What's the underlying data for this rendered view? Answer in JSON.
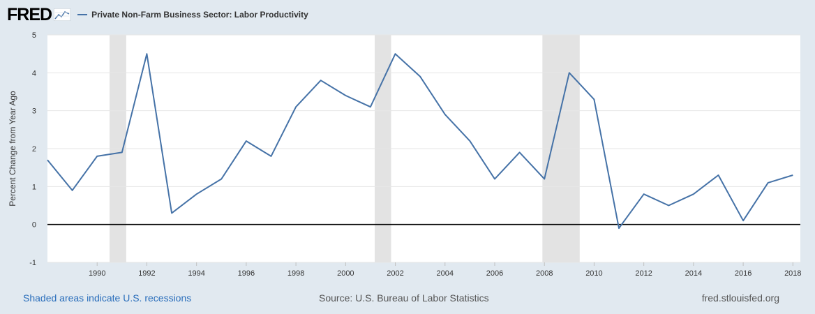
{
  "header": {
    "logo_text": "FRED",
    "legend_label": "Private Non-Farm Business Sector: Labor Productivity"
  },
  "footer": {
    "recession_note": "Shaded areas indicate U.S. recessions",
    "source": "Source: U.S. Bureau of Labor Statistics",
    "url": "fred.stlouisfed.org"
  },
  "colors": {
    "series": "#4572a7",
    "recession": "#e3e3e3",
    "background": "#e1e9f0"
  },
  "chart_data": {
    "type": "line",
    "title": "",
    "xlabel": "",
    "ylabel": "Percent Change from Year Ago",
    "xlim": [
      1988,
      2018.3
    ],
    "ylim": [
      -1,
      5
    ],
    "yticks": [
      -1,
      0,
      1,
      2,
      3,
      4,
      5
    ],
    "xticks": [
      1990,
      1992,
      1994,
      1996,
      1998,
      2000,
      2002,
      2004,
      2006,
      2008,
      2010,
      2012,
      2014,
      2016,
      2018
    ],
    "zero_line": true,
    "recessions": [
      {
        "start": 1990.5,
        "end": 1991.17
      },
      {
        "start": 2001.17,
        "end": 2001.83
      },
      {
        "start": 2007.92,
        "end": 2009.42
      }
    ],
    "series": [
      {
        "name": "Private Non-Farm Business Sector: Labor Productivity",
        "x": [
          1988,
          1989,
          1990,
          1991,
          1992,
          1993,
          1994,
          1995,
          1996,
          1997,
          1998,
          1999,
          2000,
          2001,
          2002,
          2003,
          2004,
          2005,
          2006,
          2007,
          2008,
          2009,
          2010,
          2011,
          2012,
          2013,
          2014,
          2015,
          2016,
          2017,
          2018
        ],
        "values": [
          1.7,
          0.9,
          1.8,
          1.9,
          4.5,
          0.3,
          0.8,
          1.2,
          2.2,
          1.8,
          3.1,
          3.8,
          3.4,
          3.1,
          4.5,
          3.9,
          2.9,
          2.2,
          1.2,
          1.9,
          1.2,
          4.0,
          3.3,
          -0.1,
          0.8,
          0.5,
          0.8,
          1.3,
          0.1,
          1.1,
          1.3
        ]
      }
    ]
  }
}
